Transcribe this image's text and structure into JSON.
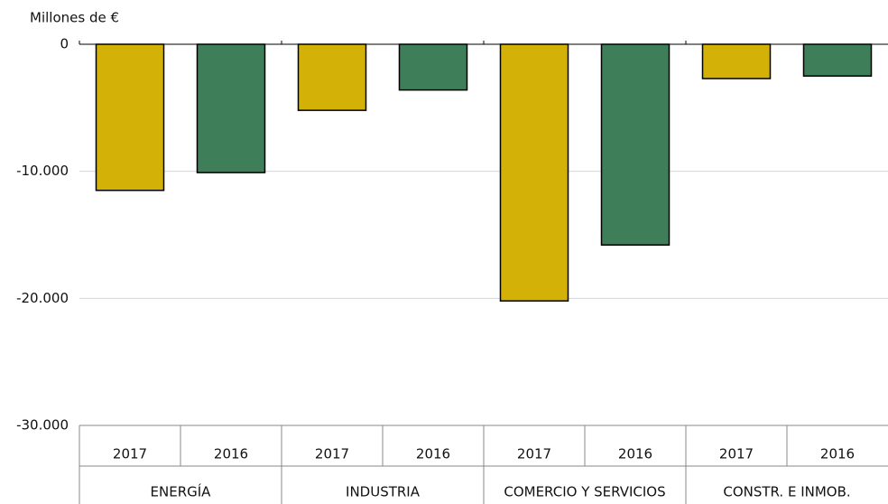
{
  "chart_data": {
    "type": "bar",
    "y_label": "Millones de €",
    "categories": [
      "ENERGÍA",
      "INDUSTRIA",
      "COMERCIO Y SERVICIOS",
      "CONSTR. E INMOB."
    ],
    "series": [
      {
        "name": "2017",
        "color": "#d4b106",
        "values": [
          -11500,
          -5200,
          -20200,
          -2700
        ]
      },
      {
        "name": "2016",
        "color": "#3e7e58",
        "values": [
          -10100,
          -3600,
          -15800,
          -2500
        ]
      }
    ],
    "ylim": [
      -30000,
      0
    ],
    "yticks": [
      {
        "value": -30000,
        "label": "-30.000"
      },
      {
        "value": -20000,
        "label": "-20.000"
      },
      {
        "value": -10000,
        "label": "-10.000"
      },
      0
    ],
    "grid": true
  }
}
